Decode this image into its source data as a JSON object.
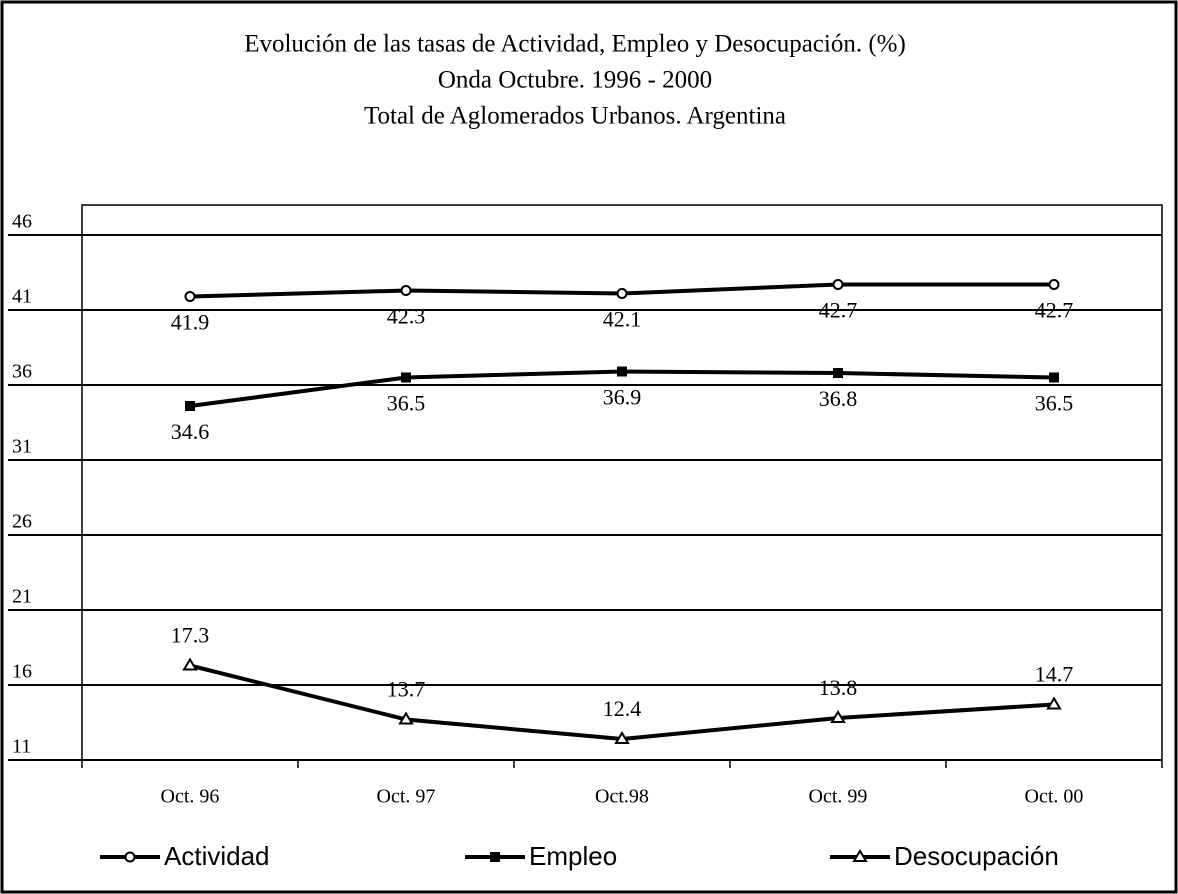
{
  "chart_data": {
    "type": "line",
    "title": [
      "Evolución de las tasas de Actividad, Empleo y Desocupación. (%)",
      "Onda Octubre. 1996 - 2000",
      "Total de Aglomerados Urbanos. Argentina"
    ],
    "categories": [
      "Oct. 96",
      "Oct. 97",
      "Oct.98",
      "Oct. 99",
      "Oct. 00"
    ],
    "series": [
      {
        "name": "Actividad",
        "color": "#000000",
        "marker": "circle",
        "label_position": "below",
        "values": [
          41.9,
          42.3,
          42.1,
          42.7,
          42.7
        ]
      },
      {
        "name": "Empleo",
        "color": "#000000",
        "marker": "square",
        "label_position": "below",
        "values": [
          34.6,
          36.5,
          36.9,
          36.8,
          36.5
        ]
      },
      {
        "name": "Desocupación",
        "color": "#000000",
        "marker": "triangle",
        "label_position": "above",
        "values": [
          17.3,
          13.7,
          12.4,
          13.8,
          14.7
        ]
      }
    ],
    "ylim": [
      11,
      48
    ],
    "yticks": [
      11,
      16,
      21,
      26,
      31,
      36,
      41,
      46
    ],
    "grid": true,
    "legend": "bottom"
  }
}
